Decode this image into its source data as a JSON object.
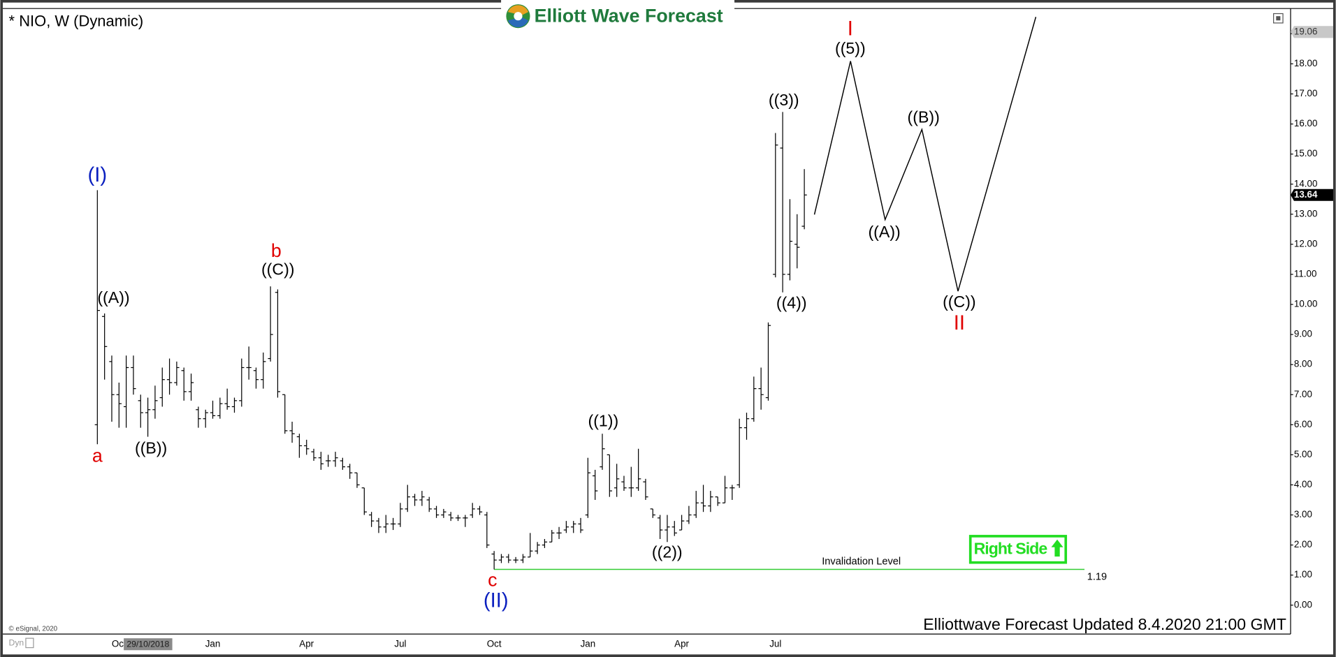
{
  "chart_data": {
    "type": "ohlc",
    "title": "* NIO, W (Dynamic)",
    "logo": "Elliott Wave Forecast",
    "footer": "Elliottwave Forecast Updated 8.4.2020 21:00 GMT",
    "copyright": "© eSignal, 2020",
    "mode_label": "Dyn",
    "cursor_label": "29/10/2018",
    "badge": "Right Side",
    "color": "#000000",
    "categories": [
      null,
      null,
      null,
      "Oct",
      null,
      null,
      null,
      null,
      null,
      null,
      null,
      null,
      null,
      null,
      null,
      null,
      "Jan",
      null,
      null,
      null,
      null,
      null,
      null,
      null,
      null,
      null,
      null,
      null,
      null,
      "Apr",
      null,
      null,
      null,
      null,
      null,
      null,
      null,
      null,
      null,
      null,
      null,
      null,
      "Jul",
      null,
      null,
      null,
      null,
      null,
      null,
      null,
      null,
      null,
      null,
      null,
      null,
      "Oct",
      null,
      null,
      null,
      null,
      null,
      null,
      null,
      null,
      null,
      null,
      null,
      null,
      "Jan",
      null,
      null,
      null,
      null,
      null,
      null,
      null,
      null,
      null,
      null,
      null,
      null,
      "Apr",
      null,
      null,
      null,
      null,
      null,
      null,
      null,
      null,
      null,
      null,
      null,
      null,
      "Jul",
      null,
      null,
      null,
      null
    ],
    "open": [
      6.0,
      9.6,
      8.1,
      7.0,
      6.6,
      7.9,
      6.8,
      6.4,
      6.5,
      6.9,
      7.5,
      7.4,
      7.8,
      7.1,
      6.5,
      6.2,
      6.4,
      6.3,
      6.7,
      6.6,
      6.8,
      7.9,
      7.8,
      7.5,
      8.2,
      10.4,
      7.0,
      5.8,
      5.6,
      5.3,
      5.1,
      4.9,
      4.8,
      4.8,
      4.8,
      4.6,
      4.4,
      3.9,
      3.0,
      2.8,
      2.6,
      2.7,
      2.7,
      3.2,
      3.6,
      3.5,
      3.5,
      3.2,
      3.0,
      3.0,
      2.9,
      2.9,
      3.0,
      3.2,
      3.0,
      1.7,
      1.5,
      1.6,
      1.5,
      1.5,
      1.6,
      1.8,
      2.0,
      2.1,
      2.4,
      2.5,
      2.6,
      2.7,
      3.0,
      4.3,
      4.6,
      5.0,
      3.9,
      4.1,
      3.9,
      3.9,
      4.1,
      3.2,
      2.9,
      2.5,
      2.6,
      2.5,
      2.8,
      3.0,
      3.4,
      3.3,
      3.6,
      3.4,
      3.9,
      4.0,
      5.9,
      6.2,
      7.2,
      6.9,
      11.0,
      15.2,
      11.0,
      12.0,
      12.6
    ],
    "high": [
      13.8,
      9.7,
      8.3,
      7.4,
      8.3,
      8.3,
      7.0,
      6.9,
      7.3,
      7.9,
      8.2,
      8.1,
      7.9,
      7.7,
      6.6,
      6.5,
      6.8,
      6.9,
      7.2,
      6.9,
      8.2,
      8.6,
      7.9,
      8.4,
      10.6,
      10.5,
      7.0,
      6.1,
      5.7,
      5.5,
      5.2,
      5.1,
      5.0,
      5.1,
      4.9,
      4.7,
      4.4,
      3.9,
      3.1,
      2.9,
      3.0,
      2.9,
      3.4,
      4.0,
      3.7,
      3.8,
      3.6,
      3.3,
      3.2,
      3.1,
      3.0,
      3.0,
      3.4,
      3.3,
      3.1,
      1.8,
      1.7,
      1.7,
      1.6,
      1.7,
      2.4,
      2.1,
      2.2,
      2.5,
      2.6,
      2.8,
      2.8,
      2.9,
      4.9,
      4.5,
      5.7,
      5.0,
      4.7,
      4.3,
      4.6,
      5.2,
      4.2,
      3.2,
      3.0,
      3.0,
      2.8,
      3.0,
      3.3,
      3.8,
      4.0,
      3.8,
      3.6,
      4.3,
      4.0,
      6.2,
      6.4,
      7.6,
      7.9,
      9.4,
      15.7,
      16.4,
      13.5,
      13.0,
      14.5
    ],
    "low": [
      5.35,
      7.5,
      6.1,
      5.9,
      5.9,
      7.0,
      5.9,
      5.6,
      6.2,
      6.6,
      7.0,
      7.3,
      6.8,
      6.8,
      5.9,
      5.9,
      6.2,
      6.2,
      6.5,
      6.4,
      6.6,
      7.5,
      7.2,
      7.2,
      8.1,
      6.9,
      5.7,
      5.4,
      4.9,
      5.0,
      4.8,
      4.5,
      4.6,
      4.6,
      4.5,
      4.2,
      3.9,
      3.0,
      2.6,
      2.4,
      2.4,
      2.5,
      2.6,
      3.1,
      3.3,
      3.3,
      3.1,
      2.9,
      2.9,
      2.8,
      2.8,
      2.6,
      2.9,
      3.0,
      1.9,
      1.19,
      1.4,
      1.4,
      1.4,
      1.4,
      1.6,
      1.7,
      1.9,
      2.1,
      2.2,
      2.4,
      2.4,
      2.4,
      2.9,
      3.5,
      4.5,
      3.6,
      3.6,
      3.8,
      3.6,
      3.8,
      3.5,
      2.9,
      2.2,
      2.1,
      2.3,
      2.5,
      2.7,
      2.9,
      3.1,
      3.1,
      3.3,
      3.4,
      3.5,
      3.9,
      5.5,
      6.1,
      6.5,
      6.8,
      10.9,
      10.4,
      10.8,
      11.2,
      12.5
    ],
    "close": [
      9.8,
      8.6,
      7.0,
      6.7,
      7.9,
      7.2,
      6.4,
      6.5,
      6.8,
      7.5,
      7.4,
      7.9,
      7.1,
      7.4,
      6.2,
      6.4,
      6.3,
      6.7,
      6.6,
      6.8,
      7.9,
      7.9,
      7.5,
      8.1,
      9.0,
      7.1,
      5.8,
      5.7,
      5.3,
      5.2,
      4.9,
      4.7,
      4.8,
      4.9,
      4.6,
      4.4,
      4.0,
      3.1,
      2.8,
      2.6,
      2.7,
      2.7,
      3.2,
      3.6,
      3.5,
      3.6,
      3.2,
      3.0,
      3.1,
      2.9,
      2.9,
      2.9,
      3.2,
      3.1,
      2.0,
      1.5,
      1.6,
      1.5,
      1.5,
      1.6,
      1.8,
      2.0,
      2.1,
      2.4,
      2.4,
      2.6,
      2.7,
      2.5,
      4.4,
      3.8,
      5.2,
      3.8,
      4.2,
      3.9,
      3.9,
      4.2,
      3.6,
      3.0,
      2.5,
      2.6,
      2.4,
      2.8,
      3.0,
      3.4,
      3.3,
      3.6,
      3.4,
      3.9,
      3.9,
      5.9,
      6.2,
      7.2,
      7.0,
      9.3,
      15.3,
      11.0,
      12.1,
      11.9,
      13.64
    ],
    "ylim": [
      -0.96,
      19.84
    ],
    "yticks": [
      {
        "value": 0,
        "label": "0.00"
      },
      {
        "value": 1,
        "label": "1.00"
      },
      {
        "value": 2,
        "label": "2.00"
      },
      {
        "value": 3,
        "label": "3.00"
      },
      {
        "value": 4,
        "label": "4.00"
      },
      {
        "value": 5,
        "label": "5.00"
      },
      {
        "value": 6,
        "label": "6.00"
      },
      {
        "value": 7,
        "label": "7.00"
      },
      {
        "value": 8,
        "label": "8.00"
      },
      {
        "value": 9,
        "label": "9.00"
      },
      {
        "value": 10,
        "label": "10.00"
      },
      {
        "value": 11,
        "label": "11.00"
      },
      {
        "value": 12,
        "label": "12.00"
      },
      {
        "value": 13,
        "label": "13.00"
      },
      {
        "value": 14,
        "label": "14.00"
      },
      {
        "value": 15,
        "label": "15.00"
      },
      {
        "value": 16,
        "label": "16.00"
      },
      {
        "value": 17,
        "label": "17.00"
      },
      {
        "value": 18,
        "label": "18.00"
      },
      {
        "value": 19,
        "label": "19.00"
      }
    ],
    "price_markers": [
      {
        "value": 19.06,
        "label": "19.06",
        "color": "#c8c8c8"
      },
      {
        "value": 13.64,
        "label": "13.64",
        "color": "#000000"
      }
    ],
    "projection": {
      "x": [
        99.4,
        104.4,
        109.2,
        114.3,
        119.3,
        130.1
      ],
      "y": [
        12.99,
        18.09,
        12.82,
        15.82,
        10.44,
        19.56
      ]
    },
    "invalidation": {
      "label": "Invalidation Level",
      "value": 1.19,
      "color": "#33cc33"
    },
    "annotations": [
      {
        "text": "(I)",
        "color": "#0a1fbf"
      },
      {
        "text": "a",
        "color": "#e00000"
      },
      {
        "text": "((A))",
        "color": "#000000"
      },
      {
        "text": "((B))",
        "color": "#000000"
      },
      {
        "text": "b",
        "color": "#e00000"
      },
      {
        "text": "((C))",
        "color": "#000000"
      },
      {
        "text": "c",
        "color": "#e00000"
      },
      {
        "text": "(II)",
        "color": "#0a1fbf"
      },
      {
        "text": "((1))",
        "color": "#000000"
      },
      {
        "text": "((2))",
        "color": "#000000"
      },
      {
        "text": "((3))",
        "color": "#000000"
      },
      {
        "text": "((4))",
        "color": "#000000"
      },
      {
        "text": "I",
        "color": "#e00000"
      },
      {
        "text": "((5))",
        "color": "#000000"
      },
      {
        "text": "((A))",
        "color": "#000000"
      },
      {
        "text": "((B))",
        "color": "#000000"
      },
      {
        "text": "((C))",
        "color": "#000000"
      },
      {
        "text": "II",
        "color": "#e00000"
      }
    ]
  }
}
